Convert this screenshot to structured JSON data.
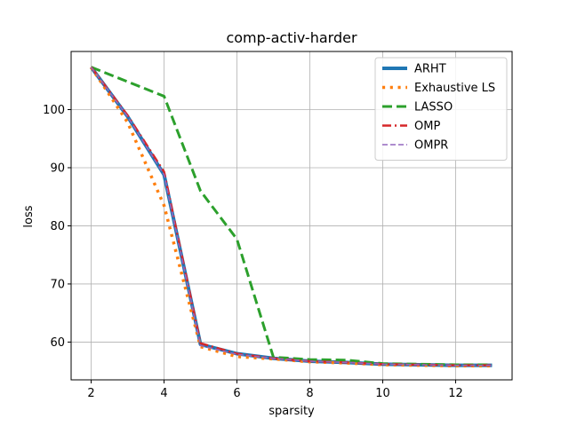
{
  "chart_data": {
    "type": "line",
    "title": "comp-activ-harder",
    "xlabel": "sparsity",
    "ylabel": "loss",
    "xlim": [
      1.45,
      13.55
    ],
    "ylim": [
      53.5,
      110
    ],
    "xticks": [
      2,
      4,
      6,
      8,
      10,
      12
    ],
    "yticks": [
      60,
      70,
      80,
      90,
      100
    ],
    "grid": true,
    "legend_position": "top-right",
    "series": [
      {
        "name": "ARHT",
        "color": "#1f77b4",
        "style": "solid",
        "width": 4,
        "x": [
          2,
          3,
          4,
          5,
          6,
          7,
          8,
          9,
          10,
          11,
          12,
          13
        ],
        "y": [
          107.3,
          98.8,
          88.8,
          59.6,
          58.0,
          57.2,
          56.7,
          56.5,
          56.2,
          56.1,
          56.0,
          56.0
        ]
      },
      {
        "name": "Exhaustive LS",
        "color": "#ff7f0e",
        "style": "dotted",
        "width": 3.5,
        "x": [
          2,
          3,
          4,
          5,
          6,
          7,
          8,
          9,
          10,
          11,
          12,
          13
        ],
        "y": [
          107.3,
          97.8,
          83.5,
          59.2,
          57.5,
          57.1,
          56.6,
          56.4,
          56.1,
          56.0,
          55.9,
          55.9
        ]
      },
      {
        "name": "LASSO",
        "color": "#2ca02c",
        "style": "dashed",
        "width": 3,
        "x": [
          2,
          3,
          4,
          5,
          6,
          7,
          8,
          9,
          10,
          11,
          12,
          13
        ],
        "y": [
          107.3,
          104.8,
          102.3,
          86.0,
          77.7,
          57.4,
          57.0,
          56.9,
          56.3,
          56.2,
          56.1,
          56.1
        ]
      },
      {
        "name": "OMP",
        "color": "#d62728",
        "style": "dashdot",
        "width": 2.5,
        "x": [
          2,
          3,
          4,
          5,
          6,
          7,
          8,
          9,
          10,
          11,
          12,
          13
        ],
        "y": [
          107.3,
          99.0,
          89.3,
          59.8,
          58.0,
          57.2,
          56.7,
          56.5,
          56.2,
          56.1,
          56.0,
          56.0
        ]
      },
      {
        "name": "OMPR",
        "color": "#9467bd",
        "style": "dashed",
        "width": 1.6,
        "x": [
          2,
          3,
          4,
          5,
          6,
          7,
          8,
          9,
          10,
          11,
          12,
          13
        ],
        "y": [
          107.3,
          98.8,
          88.8,
          59.4,
          57.9,
          57.2,
          56.7,
          56.5,
          56.2,
          56.1,
          56.0,
          56.0
        ]
      }
    ]
  }
}
